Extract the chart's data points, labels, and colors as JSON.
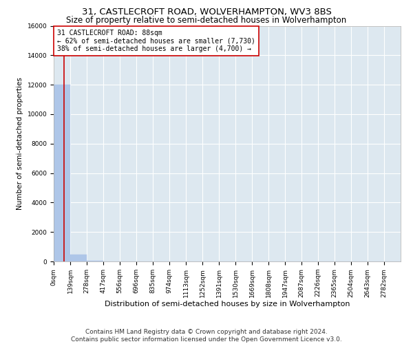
{
  "title": "31, CASTLECROFT ROAD, WOLVERHAMPTON, WV3 8BS",
  "subtitle": "Size of property relative to semi-detached houses in Wolverhampton",
  "xlabel": "Distribution of semi-detached houses by size in Wolverhampton",
  "ylabel": "Number of semi-detached properties",
  "bin_labels": [
    "0sqm",
    "139sqm",
    "278sqm",
    "417sqm",
    "556sqm",
    "696sqm",
    "835sqm",
    "974sqm",
    "1113sqm",
    "1252sqm",
    "1391sqm",
    "1530sqm",
    "1669sqm",
    "1808sqm",
    "1947sqm",
    "2087sqm",
    "2226sqm",
    "2365sqm",
    "2504sqm",
    "2643sqm",
    "2782sqm"
  ],
  "bar_values": [
    12000,
    470,
    30,
    10,
    5,
    3,
    2,
    2,
    2,
    2,
    2,
    2,
    1,
    1,
    1,
    1,
    1,
    1,
    1,
    1,
    1
  ],
  "bar_color": "#aec6e8",
  "bar_edge_color": "#aec6e8",
  "annotation_title": "31 CASTLECROFT ROAD: 88sqm",
  "annotation_line1": "← 62% of semi-detached houses are smaller (7,730)",
  "annotation_line2": "38% of semi-detached houses are larger (4,700) →",
  "annotation_box_color": "#ffffff",
  "annotation_box_edge_color": "#cc0000",
  "property_line_x": 88,
  "property_line_color": "#cc0000",
  "ylim": [
    0,
    16000
  ],
  "yticks": [
    0,
    2000,
    4000,
    6000,
    8000,
    10000,
    12000,
    14000,
    16000
  ],
  "background_color": "#dde8f0",
  "grid_color": "#ffffff",
  "footer_line1": "Contains HM Land Registry data © Crown copyright and database right 2024.",
  "footer_line2": "Contains public sector information licensed under the Open Government Licence v3.0.",
  "title_fontsize": 9.5,
  "subtitle_fontsize": 8.5,
  "xlabel_fontsize": 8,
  "ylabel_fontsize": 7.5,
  "tick_fontsize": 6.5,
  "annotation_fontsize": 7,
  "footer_fontsize": 6.5
}
